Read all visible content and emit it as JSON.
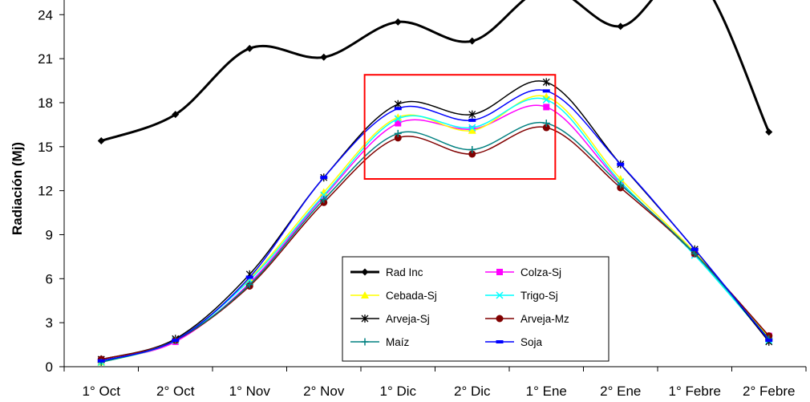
{
  "chart_data": {
    "type": "line",
    "title": "",
    "ylabel": "Radiación (Mj)",
    "xlabel": "",
    "categories": [
      "1° Oct",
      "2° Oct",
      "1° Nov",
      "2° Nov",
      "1° Dic",
      "2° Dic",
      "1° Ene",
      "2° Ene",
      "1° Febre",
      "2° Febre"
    ],
    "yticks": [
      "0",
      "3",
      "6",
      "9",
      "12",
      "15",
      "18",
      "21",
      "24"
    ],
    "ylim": [
      0,
      25
    ],
    "grid": false,
    "legend_position": "bottom-center",
    "series": [
      {
        "name": "Rad Inc",
        "color": "#000000",
        "marker": "diamond",
        "width": 3,
        "values": [
          15.4,
          17.2,
          21.7,
          21.1,
          23.5,
          22.2,
          25.8,
          23.2,
          26.8,
          16.0
        ]
      },
      {
        "name": "Colza-Sj",
        "color": "#ff00ff",
        "marker": "square",
        "width": 1.5,
        "values": [
          0.4,
          1.7,
          5.7,
          11.6,
          16.6,
          16.2,
          17.7,
          12.5,
          7.7,
          2.1
        ]
      },
      {
        "name": "Cebada-Sj",
        "color": "#ffff00",
        "marker": "triangle",
        "width": 1.5,
        "values": [
          0.3,
          1.8,
          6.0,
          11.9,
          17.0,
          16.1,
          18.4,
          12.8,
          7.8,
          2.0
        ]
      },
      {
        "name": "Trigo-Sj",
        "color": "#00ffff",
        "marker": "x",
        "width": 1.5,
        "values": [
          0.3,
          1.8,
          5.9,
          11.7,
          16.9,
          16.3,
          18.2,
          12.6,
          7.6,
          1.8
        ]
      },
      {
        "name": "Arveja-Sj",
        "color": "#000000",
        "marker": "asterisk",
        "width": 1.5,
        "values": [
          0.5,
          1.9,
          6.3,
          12.9,
          17.9,
          17.2,
          19.4,
          13.8,
          8.0,
          1.7
        ]
      },
      {
        "name": "Arveja-Mz",
        "color": "#800000",
        "marker": "circle",
        "width": 1.5,
        "values": [
          0.5,
          1.8,
          5.5,
          11.2,
          15.6,
          14.5,
          16.3,
          12.2,
          7.7,
          2.1
        ]
      },
      {
        "name": "Maíz",
        "color": "#008080",
        "marker": "plus",
        "width": 1.5,
        "values": [
          0.3,
          1.8,
          5.6,
          11.4,
          15.9,
          14.8,
          16.6,
          12.4,
          7.7,
          1.9
        ]
      },
      {
        "name": "Soja",
        "color": "#0000ff",
        "marker": "dash",
        "width": 1.5,
        "values": [
          0.4,
          1.8,
          6.1,
          12.9,
          17.6,
          16.8,
          18.8,
          13.8,
          8.0,
          1.8
        ]
      }
    ],
    "annotations": [
      {
        "shape": "rectangle",
        "color": "#ff0000",
        "x_from": "1° Dic",
        "x_to": "1° Ene",
        "y_from": 12.8,
        "y_to": 19.9
      }
    ]
  }
}
